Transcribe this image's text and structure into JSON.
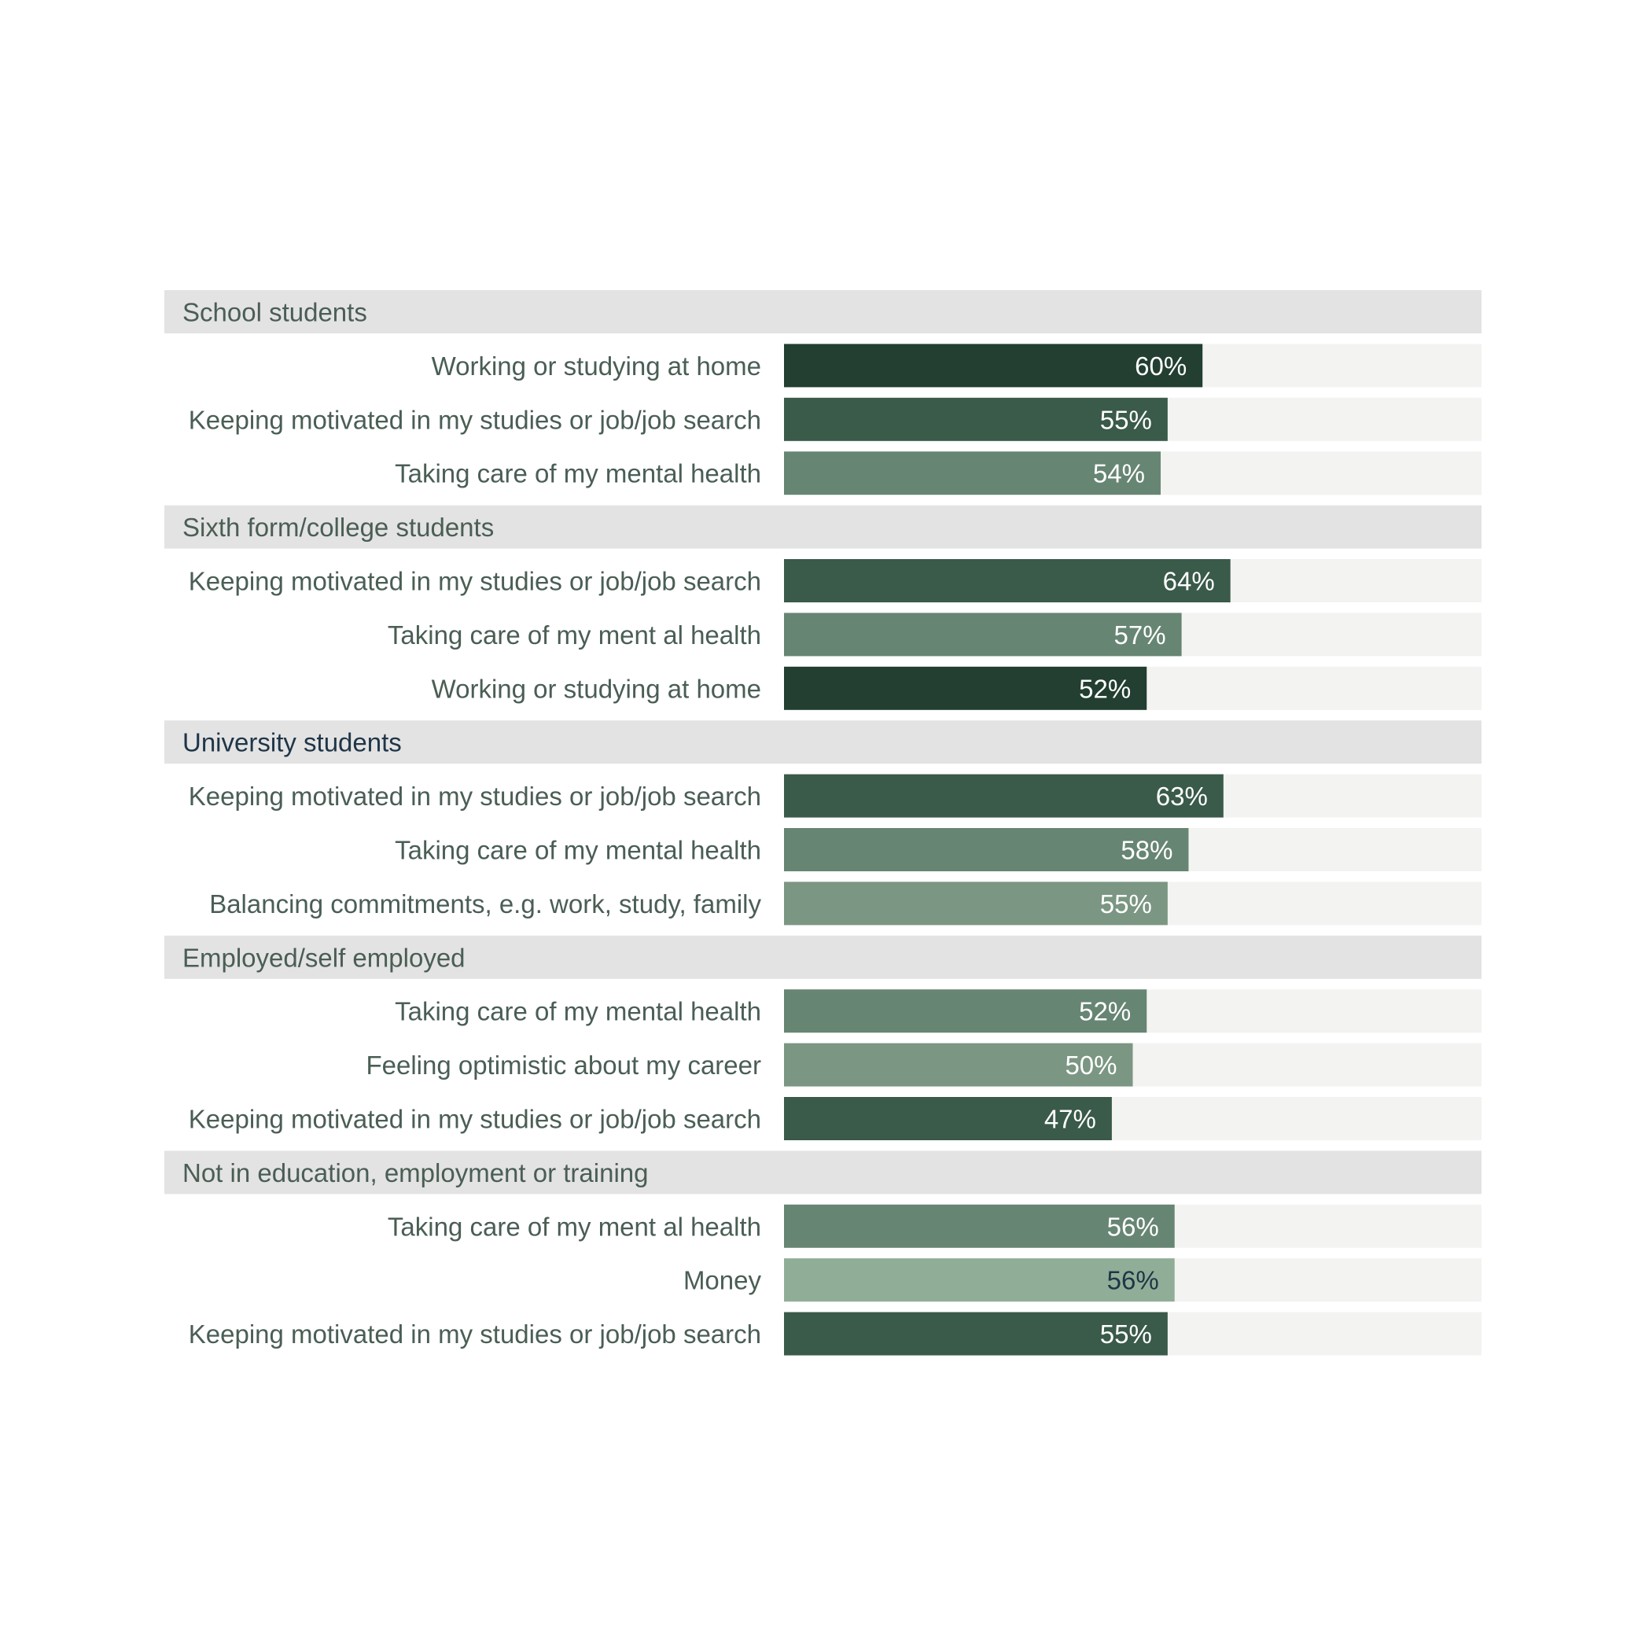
{
  "chart_data": {
    "type": "bar",
    "orientation": "horizontal",
    "xlim": [
      0,
      100
    ],
    "grid": false,
    "legend": "none",
    "colors": {
      "group_band": "#e3e3e3",
      "track": "#f3f3f1",
      "working_or_studying_at_home": "#223f31",
      "keeping_motivated": "#3a5a4a",
      "mental_health": "#678573",
      "balancing_and_optimism": "#7b9682",
      "money": "#90ae97",
      "label_text": "#4a5e54"
    },
    "groups": [
      {
        "name": "School students",
        "items": [
          {
            "label": "Working or studying at home",
            "value": 60,
            "display": "60%",
            "color": "#223f31"
          },
          {
            "label": "Keeping motivated in my studies or job/job search",
            "value": 55,
            "display": "55%",
            "color": "#3a5a4a"
          },
          {
            "label": "Taking care of my mental health",
            "value": 54,
            "display": "54%",
            "color": "#678573"
          }
        ]
      },
      {
        "name": "Sixth form/college students",
        "items": [
          {
            "label": "Keeping motivated in my studies or job/job search",
            "value": 64,
            "display": "64%",
            "color": "#3a5a4a"
          },
          {
            "label": "Taking care of my ment al health",
            "value": 57,
            "display": "57%",
            "color": "#678573"
          },
          {
            "label": "Working or studying at home",
            "value": 52,
            "display": "52%",
            "color": "#223f31"
          }
        ]
      },
      {
        "name": "University students",
        "items": [
          {
            "label": "Keeping motivated in my studies or job/job search",
            "value": 63,
            "display": "63%",
            "color": "#3a5a4a"
          },
          {
            "label": "Taking care of my mental health",
            "value": 58,
            "display": "58%",
            "color": "#678573"
          },
          {
            "label": "Balancing commitments, e.g. work, study, family",
            "value": 55,
            "display": "55%",
            "color": "#7b9682"
          }
        ]
      },
      {
        "name": "Employed/self employed",
        "items": [
          {
            "label": "Taking care of my mental health",
            "value": 52,
            "display": "52%",
            "color": "#678573"
          },
          {
            "label": "Feeling optimistic about my career",
            "value": 50,
            "display": "50%",
            "color": "#7b9682"
          },
          {
            "label": "Keeping motivated in my studies or job/job search",
            "value": 47,
            "display": "47%",
            "color": "#3a5a4a"
          }
        ]
      },
      {
        "name": "Not in education, employment or training",
        "items": [
          {
            "label": "Taking care of my ment al health",
            "value": 56,
            "display": "56%",
            "color": "#678573"
          },
          {
            "label": "Money",
            "value": 56,
            "display": "56%",
            "color": "#90ae97"
          },
          {
            "label": "Keeping motivated in my studies or job/job search",
            "value": 55,
            "display": "55%",
            "color": "#3a5a4a"
          }
        ]
      }
    ]
  }
}
